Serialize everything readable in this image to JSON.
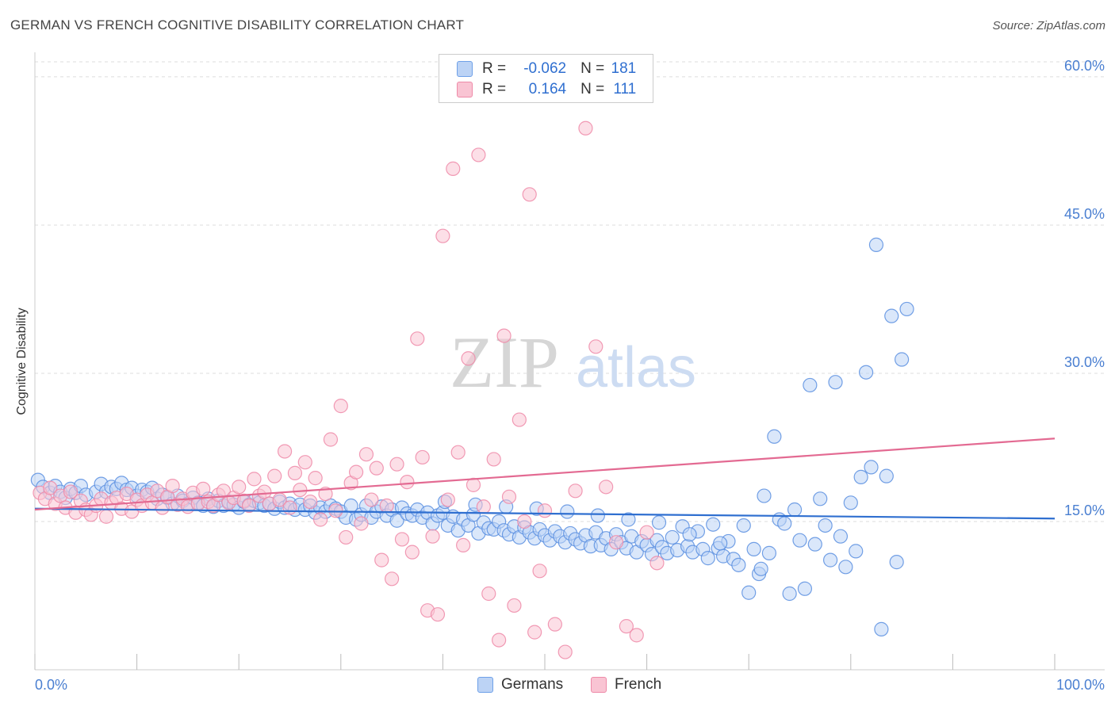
{
  "title": "GERMAN VS FRENCH COGNITIVE DISABILITY CORRELATION CHART",
  "source": "Source: ZipAtlas.com",
  "watermark": {
    "zip": "ZIP",
    "atlas": "atlas"
  },
  "legend": {
    "rows": [
      {
        "r_label": "R = ",
        "r_value": "-0.062",
        "n_label": "N = ",
        "n_value": "181",
        "color": "#6ea0e8",
        "fill": "#bcd3f5"
      },
      {
        "r_label": "R = ",
        "r_value": "0.164",
        "n_label": "N = ",
        "n_value": "111",
        "color": "#ee8aa8",
        "fill": "#f9c4d3"
      }
    ]
  },
  "bottom_legend": [
    {
      "label": "Germans",
      "color": "#6ea0e8",
      "fill": "#bcd3f5"
    },
    {
      "label": "French",
      "color": "#ee8aa8",
      "fill": "#f9c4d3"
    }
  ],
  "chart_data": {
    "type": "scatter",
    "title": "GERMAN VS FRENCH COGNITIVE DISABILITY CORRELATION CHART",
    "xlabel": "",
    "ylabel": "Cognitive Disability",
    "xlim": [
      0,
      100
    ],
    "ylim": [
      0,
      62
    ],
    "x_tick_labels": [
      "0.0%",
      "100.0%"
    ],
    "y_ticks": [
      15,
      30,
      45,
      60
    ],
    "y_tick_labels": [
      "15.0%",
      "30.0%",
      "45.0%",
      "60.0%"
    ],
    "grid": true,
    "legend_position": "top-center",
    "series": [
      {
        "name": "Germans",
        "color": "#5b8fe0",
        "fill": "#bcd3f5",
        "trend_color": "#2f6fd0",
        "trend": {
          "x": [
            0,
            100
          ],
          "y": [
            16.3,
            15.3
          ]
        },
        "points": [
          [
            0.3,
            19.2
          ],
          [
            0.8,
            18.5
          ],
          [
            1.5,
            17.9
          ],
          [
            2.0,
            18.6
          ],
          [
            2.5,
            18.0
          ],
          [
            3.0,
            17.4
          ],
          [
            3.5,
            18.3
          ],
          [
            4.0,
            17.9
          ],
          [
            4.5,
            18.6
          ],
          [
            5.0,
            17.7
          ],
          [
            6.0,
            18.0
          ],
          [
            6.5,
            18.8
          ],
          [
            7.0,
            18.0
          ],
          [
            7.5,
            18.5
          ],
          [
            8.0,
            18.3
          ],
          [
            8.5,
            18.9
          ],
          [
            9.0,
            18.2
          ],
          [
            9.5,
            18.4
          ],
          [
            10.0,
            17.6
          ],
          [
            10.5,
            18.2
          ],
          [
            11.0,
            18.0
          ],
          [
            11.5,
            18.4
          ],
          [
            12.0,
            17.3
          ],
          [
            12.5,
            17.7
          ],
          [
            13.0,
            17.4
          ],
          [
            13.5,
            16.8
          ],
          [
            14.0,
            17.6
          ],
          [
            14.5,
            17.1
          ],
          [
            15.0,
            16.8
          ],
          [
            15.5,
            17.4
          ],
          [
            16.0,
            16.9
          ],
          [
            16.5,
            16.6
          ],
          [
            17.0,
            17.3
          ],
          [
            17.5,
            16.5
          ],
          [
            18.0,
            17.1
          ],
          [
            18.5,
            16.6
          ],
          [
            19.0,
            17.0
          ],
          [
            19.5,
            16.7
          ],
          [
            20.0,
            16.4
          ],
          [
            20.5,
            17.0
          ],
          [
            21.0,
            16.7
          ],
          [
            21.5,
            17.1
          ],
          [
            22.0,
            16.9
          ],
          [
            22.5,
            16.6
          ],
          [
            23.0,
            16.8
          ],
          [
            23.5,
            16.3
          ],
          [
            24.0,
            17.0
          ],
          [
            24.5,
            16.4
          ],
          [
            25.0,
            16.8
          ],
          [
            25.5,
            16.2
          ],
          [
            26.0,
            16.7
          ],
          [
            26.5,
            16.2
          ],
          [
            27.0,
            16.6
          ],
          [
            27.5,
            15.9
          ],
          [
            28.0,
            16.4
          ],
          [
            28.5,
            16.0
          ],
          [
            29.0,
            16.6
          ],
          [
            29.5,
            16.3
          ],
          [
            30.0,
            16.0
          ],
          [
            30.5,
            15.4
          ],
          [
            31.0,
            16.6
          ],
          [
            31.5,
            15.2
          ],
          [
            32.0,
            15.7
          ],
          [
            32.5,
            16.6
          ],
          [
            33.0,
            15.4
          ],
          [
            33.5,
            16.0
          ],
          [
            34.0,
            16.5
          ],
          [
            34.5,
            15.6
          ],
          [
            35.0,
            16.2
          ],
          [
            35.5,
            15.1
          ],
          [
            36.0,
            16.4
          ],
          [
            36.5,
            15.8
          ],
          [
            37.0,
            15.6
          ],
          [
            37.5,
            16.2
          ],
          [
            38.0,
            15.4
          ],
          [
            38.5,
            15.9
          ],
          [
            39.0,
            14.8
          ],
          [
            39.5,
            15.6
          ],
          [
            40.0,
            15.9
          ],
          [
            40.5,
            14.6
          ],
          [
            41.0,
            15.5
          ],
          [
            41.5,
            14.1
          ],
          [
            42.0,
            15.2
          ],
          [
            42.5,
            14.6
          ],
          [
            43.0,
            15.7
          ],
          [
            43.5,
            13.8
          ],
          [
            44.0,
            14.9
          ],
          [
            44.5,
            14.3
          ],
          [
            45.0,
            14.2
          ],
          [
            45.5,
            15.0
          ],
          [
            46.0,
            14.1
          ],
          [
            46.5,
            13.7
          ],
          [
            47.0,
            14.5
          ],
          [
            47.5,
            13.4
          ],
          [
            48.0,
            14.4
          ],
          [
            48.5,
            13.9
          ],
          [
            49.0,
            13.3
          ],
          [
            49.5,
            14.2
          ],
          [
            50.0,
            13.6
          ],
          [
            50.5,
            13.1
          ],
          [
            51.0,
            14.0
          ],
          [
            51.5,
            13.5
          ],
          [
            52.0,
            12.9
          ],
          [
            52.5,
            13.8
          ],
          [
            53.0,
            13.2
          ],
          [
            53.5,
            12.8
          ],
          [
            54.0,
            13.6
          ],
          [
            54.5,
            12.5
          ],
          [
            55.0,
            13.9
          ],
          [
            55.5,
            12.6
          ],
          [
            56.0,
            13.3
          ],
          [
            56.5,
            12.2
          ],
          [
            57.0,
            13.7
          ],
          [
            57.5,
            12.9
          ],
          [
            58.0,
            12.3
          ],
          [
            58.5,
            13.5
          ],
          [
            59.0,
            11.9
          ],
          [
            59.5,
            13.0
          ],
          [
            60.0,
            12.6
          ],
          [
            60.5,
            11.7
          ],
          [
            61.0,
            13.1
          ],
          [
            61.5,
            12.4
          ],
          [
            62.0,
            11.8
          ],
          [
            62.5,
            13.4
          ],
          [
            63.0,
            12.1
          ],
          [
            63.5,
            14.5
          ],
          [
            64.0,
            12.5
          ],
          [
            64.5,
            11.9
          ],
          [
            65.0,
            14.0
          ],
          [
            65.5,
            12.2
          ],
          [
            66.0,
            11.3
          ],
          [
            66.5,
            14.7
          ],
          [
            67.0,
            12.3
          ],
          [
            67.5,
            11.5
          ],
          [
            68.0,
            13.0
          ],
          [
            68.5,
            11.2
          ],
          [
            69.0,
            10.6
          ],
          [
            69.5,
            14.6
          ],
          [
            70.0,
            7.8
          ],
          [
            70.5,
            12.2
          ],
          [
            71.0,
            9.7
          ],
          [
            71.5,
            17.6
          ],
          [
            72.0,
            11.8
          ],
          [
            72.5,
            23.6
          ],
          [
            73.0,
            15.2
          ],
          [
            73.5,
            14.8
          ],
          [
            74.0,
            7.7
          ],
          [
            74.5,
            16.2
          ],
          [
            75.0,
            13.1
          ],
          [
            75.5,
            8.2
          ],
          [
            76.0,
            28.8
          ],
          [
            76.5,
            12.7
          ],
          [
            77.0,
            17.3
          ],
          [
            77.5,
            14.6
          ],
          [
            78.0,
            11.1
          ],
          [
            78.5,
            29.1
          ],
          [
            79.0,
            13.5
          ],
          [
            79.5,
            10.4
          ],
          [
            80.0,
            16.9
          ],
          [
            80.5,
            12.0
          ],
          [
            81.0,
            19.5
          ],
          [
            81.5,
            30.1
          ],
          [
            82.0,
            20.5
          ],
          [
            82.5,
            43.0
          ],
          [
            83.0,
            4.1
          ],
          [
            83.5,
            19.6
          ],
          [
            84.0,
            35.8
          ],
          [
            84.5,
            10.9
          ],
          [
            85.0,
            31.4
          ],
          [
            85.5,
            36.5
          ],
          [
            71.2,
            10.2
          ],
          [
            67.2,
            12.8
          ],
          [
            64.2,
            13.7
          ],
          [
            61.2,
            14.9
          ],
          [
            58.2,
            15.2
          ],
          [
            55.2,
            15.6
          ],
          [
            52.2,
            16.0
          ],
          [
            49.2,
            16.3
          ],
          [
            46.2,
            16.5
          ],
          [
            43.2,
            16.7
          ],
          [
            40.2,
            17.0
          ]
        ]
      },
      {
        "name": "French",
        "color": "#ee8aa8",
        "fill": "#f9c4d3",
        "trend_color": "#e36a92",
        "trend": {
          "x": [
            0,
            100
          ],
          "y": [
            16.2,
            23.4
          ]
        },
        "points": [
          [
            0.5,
            17.9
          ],
          [
            1.0,
            17.3
          ],
          [
            1.5,
            18.4
          ],
          [
            2.0,
            16.8
          ],
          [
            2.5,
            17.6
          ],
          [
            3.0,
            16.4
          ],
          [
            3.5,
            18.0
          ],
          [
            4.0,
            15.9
          ],
          [
            4.5,
            17.1
          ],
          [
            5.0,
            16.2
          ],
          [
            5.5,
            15.7
          ],
          [
            6.0,
            16.6
          ],
          [
            6.5,
            17.3
          ],
          [
            7.0,
            15.5
          ],
          [
            7.5,
            16.9
          ],
          [
            8.0,
            17.4
          ],
          [
            8.5,
            16.3
          ],
          [
            9.0,
            17.8
          ],
          [
            9.5,
            16.0
          ],
          [
            10.0,
            17.2
          ],
          [
            10.5,
            16.6
          ],
          [
            11.0,
            17.7
          ],
          [
            11.5,
            16.9
          ],
          [
            12.0,
            18.1
          ],
          [
            12.5,
            16.4
          ],
          [
            13.0,
            17.5
          ],
          [
            13.5,
            18.6
          ],
          [
            14.0,
            16.7
          ],
          [
            14.5,
            17.3
          ],
          [
            15.0,
            16.5
          ],
          [
            15.5,
            17.9
          ],
          [
            16.0,
            16.8
          ],
          [
            16.5,
            18.3
          ],
          [
            17.0,
            17.0
          ],
          [
            17.5,
            16.6
          ],
          [
            18.0,
            17.7
          ],
          [
            18.5,
            18.1
          ],
          [
            19.0,
            16.9
          ],
          [
            19.5,
            17.4
          ],
          [
            20.0,
            18.5
          ],
          [
            20.5,
            17.1
          ],
          [
            21.0,
            16.6
          ],
          [
            21.5,
            19.3
          ],
          [
            22.0,
            17.6
          ],
          [
            22.5,
            18.0
          ],
          [
            23.0,
            16.8
          ],
          [
            23.5,
            19.6
          ],
          [
            24.0,
            17.2
          ],
          [
            24.5,
            22.1
          ],
          [
            25.0,
            16.4
          ],
          [
            25.5,
            19.9
          ],
          [
            26.0,
            18.2
          ],
          [
            26.5,
            21.0
          ],
          [
            27.0,
            17.0
          ],
          [
            27.5,
            19.4
          ],
          [
            28.0,
            15.2
          ],
          [
            28.5,
            17.8
          ],
          [
            29.0,
            23.3
          ],
          [
            29.5,
            16.1
          ],
          [
            30.0,
            26.7
          ],
          [
            30.5,
            13.4
          ],
          [
            31.0,
            18.9
          ],
          [
            31.5,
            20.0
          ],
          [
            32.0,
            14.8
          ],
          [
            32.5,
            21.8
          ],
          [
            33.0,
            17.2
          ],
          [
            33.5,
            20.4
          ],
          [
            34.0,
            11.1
          ],
          [
            34.5,
            16.6
          ],
          [
            35.0,
            9.2
          ],
          [
            35.5,
            20.8
          ],
          [
            36.0,
            13.2
          ],
          [
            36.5,
            19.0
          ],
          [
            37.0,
            11.9
          ],
          [
            37.5,
            33.5
          ],
          [
            38.0,
            21.5
          ],
          [
            38.5,
            6.0
          ],
          [
            39.0,
            13.5
          ],
          [
            39.5,
            5.6
          ],
          [
            40.0,
            43.9
          ],
          [
            40.5,
            17.2
          ],
          [
            41.0,
            50.7
          ],
          [
            41.5,
            22.0
          ],
          [
            42.0,
            12.6
          ],
          [
            42.5,
            31.5
          ],
          [
            43.0,
            18.7
          ],
          [
            43.5,
            52.1
          ],
          [
            44.0,
            16.5
          ],
          [
            44.5,
            7.7
          ],
          [
            45.0,
            21.3
          ],
          [
            45.5,
            3.0
          ],
          [
            46.0,
            33.8
          ],
          [
            46.5,
            17.5
          ],
          [
            47.0,
            6.5
          ],
          [
            47.5,
            25.3
          ],
          [
            48.0,
            15.0
          ],
          [
            48.5,
            48.1
          ],
          [
            49.0,
            3.8
          ],
          [
            49.5,
            10.0
          ],
          [
            50.0,
            16.1
          ],
          [
            51.0,
            4.6
          ],
          [
            52.0,
            1.8
          ],
          [
            53.0,
            18.1
          ],
          [
            54.0,
            54.8
          ],
          [
            55.0,
            32.7
          ],
          [
            56.0,
            18.5
          ],
          [
            57.0,
            12.9
          ],
          [
            58.0,
            4.4
          ],
          [
            59.0,
            3.5
          ],
          [
            60.0,
            13.9
          ],
          [
            61.0,
            10.8
          ]
        ]
      }
    ]
  }
}
